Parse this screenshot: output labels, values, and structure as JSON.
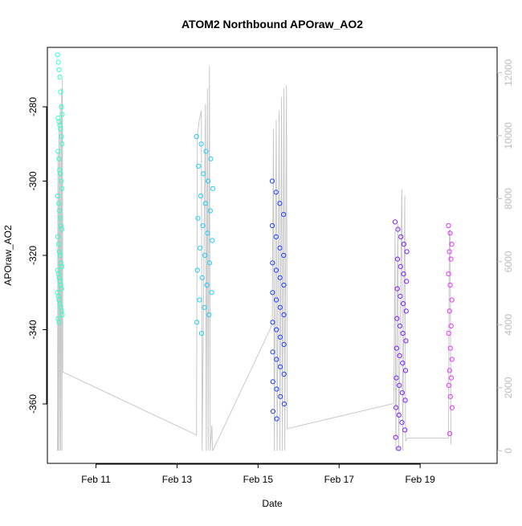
{
  "chart_data": {
    "type": "scatter",
    "title": "ATOM2 Northbound APOraw_AO2",
    "xlabel": "Date",
    "ylabel": "APOraw_AO2",
    "x_ticks": [
      "Feb 11",
      "Feb 13",
      "Feb 15",
      "Feb 17",
      "Feb 19"
    ],
    "x_tick_days": [
      11,
      13,
      15,
      17,
      19
    ],
    "xlim_days": [
      9.8,
      20.9
    ],
    "y_ticks": [
      -280,
      -300,
      -320,
      -340,
      -360
    ],
    "ylim": [
      -376,
      -264
    ],
    "y2_ticks": [
      "0",
      "2000",
      "4000",
      "6000",
      "8000",
      "10000",
      "12000"
    ],
    "y2_values": [
      0,
      2000,
      4000,
      6000,
      8000,
      10000,
      12000
    ],
    "y2lim": [
      -400,
      12800
    ],
    "grid": false,
    "legend": "none",
    "colors": {
      "series_1": "#33ffcc",
      "series_2": "#22ccff",
      "series_3": "#2244ff",
      "series_4": "#7a22ff",
      "series_5": "#e833ff",
      "line": "#c8c8c8"
    },
    "series": [
      {
        "x_range": [
          10.05,
          10.17
        ],
        "y_samples": [
          -266,
          -268,
          -270,
          -272,
          -276,
          -280,
          -282,
          -283,
          -284,
          -285,
          -286,
          -288,
          -290,
          -292,
          -294,
          -297,
          -298,
          -300,
          -302,
          -304,
          -306,
          -308,
          -310,
          -312,
          -313,
          -315,
          -317,
          -319,
          -320,
          -322,
          -323,
          -324,
          -325,
          -326,
          -327,
          -328,
          -329,
          -330,
          -331,
          -332,
          -333,
          -334,
          -335,
          -336,
          -337,
          -338
        ]
      },
      {
        "x_range": [
          13.48,
          13.9
        ],
        "y_samples": [
          -288,
          -290,
          -292,
          -294,
          -296,
          -298,
          -300,
          -302,
          -304,
          -306,
          -308,
          -310,
          -312,
          -314,
          -316,
          -318,
          -320,
          -322,
          -324,
          -326,
          -328,
          -330,
          -332,
          -334,
          -336,
          -338,
          -341
        ]
      },
      {
        "x_range": [
          15.35,
          15.72
        ],
        "y_samples": [
          -300,
          -303,
          -306,
          -309,
          -312,
          -315,
          -318,
          -320,
          -322,
          -324,
          -326,
          -328,
          -330,
          -332,
          -334,
          -336,
          -338,
          -340,
          -342,
          -344,
          -346,
          -348,
          -350,
          -352,
          -354,
          -356,
          -358,
          -360,
          -362,
          -364
        ]
      },
      {
        "x_range": [
          18.38,
          18.68
        ],
        "y_samples": [
          -311,
          -313,
          -315,
          -317,
          -319,
          -321,
          -323,
          -325,
          -327,
          -329,
          -331,
          -333,
          -335,
          -337,
          -339,
          -341,
          -343,
          -345,
          -347,
          -349,
          -351,
          -353,
          -355,
          -357,
          -359,
          -361,
          -363,
          -365,
          -367,
          -369,
          -372
        ]
      },
      {
        "x_range": [
          19.7,
          19.8
        ],
        "y_samples": [
          -312,
          -314,
          -317,
          -319,
          -321,
          -325,
          -328,
          -332,
          -335,
          -339,
          -341,
          -345,
          -348,
          -351,
          -353,
          -355,
          -358,
          -361,
          -368
        ]
      }
    ],
    "line_series_y2": [
      {
        "x": 10.05,
        "y": 0
      },
      {
        "x": 10.06,
        "y": 9500
      },
      {
        "x": 10.07,
        "y": 0
      },
      {
        "x": 10.09,
        "y": 10500
      },
      {
        "x": 10.1,
        "y": 0
      },
      {
        "x": 10.12,
        "y": 11000
      },
      {
        "x": 10.13,
        "y": 0
      },
      {
        "x": 10.15,
        "y": 11500
      },
      {
        "x": 10.16,
        "y": 0
      },
      {
        "x": 10.17,
        "y": 11800
      },
      {
        "x": 10.18,
        "y": 2500
      },
      {
        "x": 13.48,
        "y": 500
      },
      {
        "x": 13.5,
        "y": 10000
      },
      {
        "x": 13.55,
        "y": 10500
      },
      {
        "x": 13.6,
        "y": 10800
      },
      {
        "x": 13.62,
        "y": 0
      },
      {
        "x": 13.7,
        "y": 11000
      },
      {
        "x": 13.72,
        "y": 0
      },
      {
        "x": 13.75,
        "y": 11500
      },
      {
        "x": 13.77,
        "y": 0
      },
      {
        "x": 13.8,
        "y": 12200
      },
      {
        "x": 13.82,
        "y": 0
      },
      {
        "x": 13.86,
        "y": 800
      },
      {
        "x": 13.88,
        "y": 0
      },
      {
        "x": 15.35,
        "y": 4000
      },
      {
        "x": 15.38,
        "y": 10200
      },
      {
        "x": 15.4,
        "y": 0
      },
      {
        "x": 15.45,
        "y": 10500
      },
      {
        "x": 15.47,
        "y": 0
      },
      {
        "x": 15.52,
        "y": 10800
      },
      {
        "x": 15.54,
        "y": 0
      },
      {
        "x": 15.58,
        "y": 11200
      },
      {
        "x": 15.6,
        "y": 0
      },
      {
        "x": 15.64,
        "y": 11500
      },
      {
        "x": 15.66,
        "y": 0
      },
      {
        "x": 15.7,
        "y": 11600
      },
      {
        "x": 15.72,
        "y": 700
      },
      {
        "x": 18.35,
        "y": 1500
      },
      {
        "x": 18.38,
        "y": 7000
      },
      {
        "x": 18.4,
        "y": 0
      },
      {
        "x": 18.45,
        "y": 7200
      },
      {
        "x": 18.47,
        "y": 0
      },
      {
        "x": 18.55,
        "y": 8300
      },
      {
        "x": 18.57,
        "y": 0
      },
      {
        "x": 18.62,
        "y": 8100
      },
      {
        "x": 18.64,
        "y": 300
      },
      {
        "x": 18.68,
        "y": 400
      },
      {
        "x": 19.7,
        "y": 400
      },
      {
        "x": 19.72,
        "y": 7000
      },
      {
        "x": 19.74,
        "y": 7000
      },
      {
        "x": 19.76,
        "y": 200
      }
    ]
  }
}
